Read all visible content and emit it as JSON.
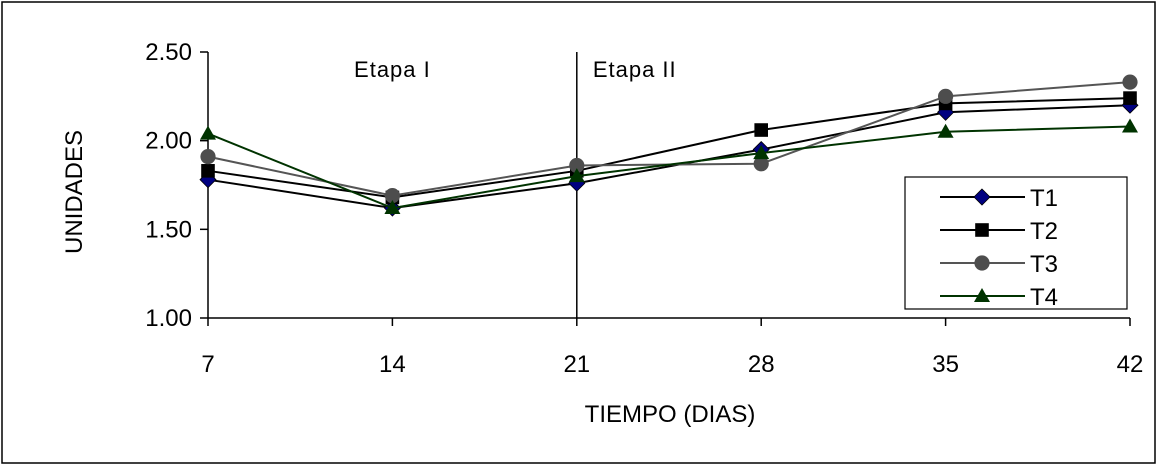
{
  "chart_data": {
    "type": "line",
    "xlabel": "TIEMPO (DIAS)",
    "ylabel": "UNIDADES",
    "x": [
      7,
      14,
      21,
      28,
      35,
      42
    ],
    "x_tick_labels": [
      "7",
      "14",
      "21",
      "28",
      "35",
      "42"
    ],
    "ylim": [
      1.0,
      2.5
    ],
    "y_ticks": [
      1.0,
      1.5,
      2.0,
      2.5
    ],
    "y_tick_labels": [
      "1.00",
      "1.50",
      "2.00",
      "2.50"
    ],
    "grid": false,
    "legend_position": "bottom-right",
    "vertical_marker": {
      "x": 21
    },
    "annotations": [
      {
        "text": "Etapa I",
        "x": 14,
        "y": 2.36
      },
      {
        "text": "Etapa II",
        "x": 23.2,
        "y": 2.36
      }
    ],
    "series": [
      {
        "name": "T1",
        "values": [
          1.78,
          1.62,
          1.76,
          1.95,
          2.16,
          2.2
        ],
        "color": "#000000",
        "marker": "diamond",
        "marker_color": "#000080"
      },
      {
        "name": "T2",
        "values": [
          1.83,
          1.68,
          1.83,
          2.06,
          2.21,
          2.24
        ],
        "color": "#000000",
        "marker": "square",
        "marker_color": "#000000"
      },
      {
        "name": "T3",
        "values": [
          1.91,
          1.69,
          1.86,
          1.87,
          2.25,
          2.33
        ],
        "color": "#555555",
        "marker": "circle",
        "marker_color": "#4d4d4d"
      },
      {
        "name": "T4",
        "values": [
          2.04,
          1.62,
          1.8,
          1.93,
          2.05,
          2.08
        ],
        "color": "#003300",
        "marker": "triangle",
        "marker_color": "#003300"
      }
    ]
  }
}
